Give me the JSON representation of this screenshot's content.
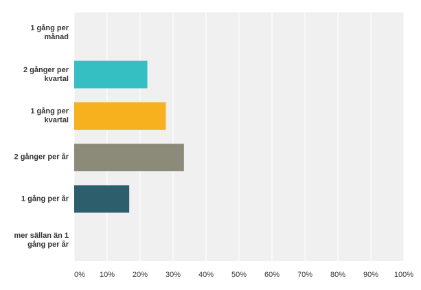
{
  "chart_data": {
    "type": "bar",
    "orientation": "horizontal",
    "categories": [
      "1 gång per månad",
      "2 gånger per kvartal",
      "1 gång per kvartal",
      "2 gånger per år",
      "1 gång per år",
      "mer sällan än 1 gång per år"
    ],
    "values": [
      0,
      22.2,
      27.8,
      33.3,
      16.7,
      0
    ],
    "colors": [
      "#35bfc2",
      "#35bfc2",
      "#f7b11f",
      "#8c8b7a",
      "#2d5e6c",
      "#2d5e6c"
    ],
    "xlim": [
      0,
      100
    ],
    "xticks": [
      {
        "value": 0,
        "label": "0%"
      },
      {
        "value": 10,
        "label": "10%"
      },
      {
        "value": 20,
        "label": "20%"
      },
      {
        "value": 30,
        "label": "30%"
      },
      {
        "value": 40,
        "label": "40%"
      },
      {
        "value": 50,
        "label": "50%"
      },
      {
        "value": 60,
        "label": "60%"
      },
      {
        "value": 70,
        "label": "70%"
      },
      {
        "value": 80,
        "label": "80%"
      },
      {
        "value": 90,
        "label": "90%"
      },
      {
        "value": 100,
        "label": "100%"
      }
    ],
    "grid": true
  }
}
